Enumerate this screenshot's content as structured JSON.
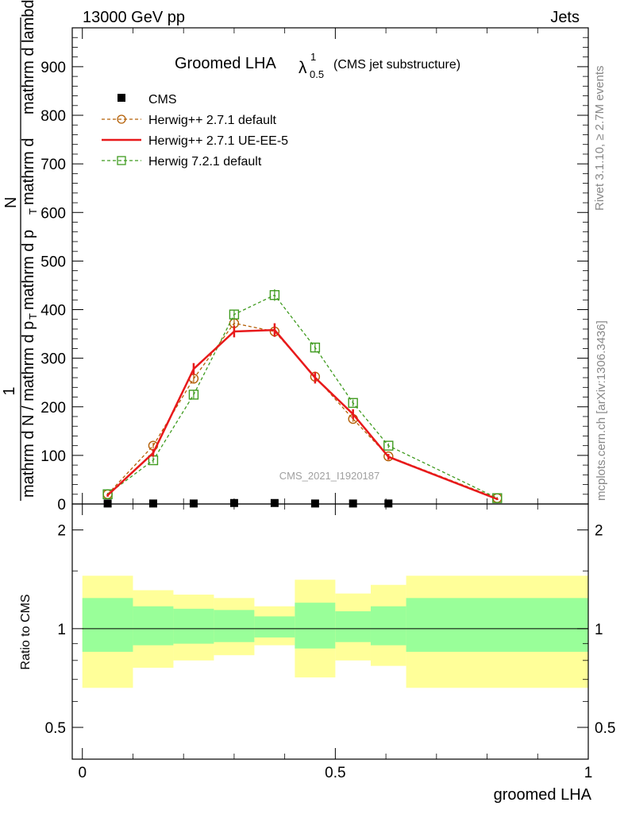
{
  "header": {
    "energy_label": "13000 GeV pp",
    "process_label": "Jets"
  },
  "side_labels": {
    "rivet": "Rivet 3.1.10, ≥ 2.7M events",
    "mcplots": "mcplots.cern.ch [arXiv:1306.3436]"
  },
  "watermark": "CMS_2021_I1920187",
  "main_title": {
    "text": "Groomed LHA",
    "lambda_symbol": "λ",
    "lambda_sup": "1",
    "lambda_sub": "0.5",
    "note": "(CMS jet substructure)"
  },
  "colors": {
    "cms": "#000000",
    "herwig_default": "#b45f06",
    "herwig_ueee5": "#e8191b",
    "herwig7": "#3f9b1f",
    "band_outer": "#ffff99",
    "band_inner": "#99ff99"
  },
  "chart_data": [
    {
      "type": "line",
      "ylabel_parts": [
        "1",
        "mathrm d N / mathrm d p",
        "T",
        "mathrm d p",
        "T",
        "mathrm d",
        "N",
        "mathrm d lambda"
      ],
      "ylim": [
        0,
        980
      ],
      "xlim": [
        -0.02,
        1.0
      ],
      "yticks": [
        0,
        100,
        200,
        300,
        400,
        500,
        600,
        700,
        800,
        900
      ],
      "legend_position": "top-left",
      "series": [
        {
          "name": "CMS",
          "marker": "filled-square",
          "x": [
            0.05,
            0.14,
            0.22,
            0.3,
            0.38,
            0.46,
            0.535,
            0.605
          ],
          "y": [
            1,
            1,
            1,
            2,
            2,
            1,
            1,
            1
          ]
        },
        {
          "name": "Herwig++ 2.7.1 default",
          "marker": "open-circle",
          "style": "dashed",
          "x": [
            0.05,
            0.14,
            0.22,
            0.3,
            0.38,
            0.46,
            0.535,
            0.605,
            0.82
          ],
          "y": [
            20,
            120,
            258,
            372,
            355,
            262,
            175,
            98,
            12
          ],
          "err": [
            3,
            6,
            8,
            9,
            9,
            8,
            6,
            4,
            2
          ]
        },
        {
          "name": "Herwig++ 2.7.1 UE-EE-5",
          "marker": "none",
          "style": "solid",
          "x": [
            0.05,
            0.14,
            0.22,
            0.3,
            0.38,
            0.46,
            0.535,
            0.605,
            0.82
          ],
          "y": [
            18,
            105,
            278,
            355,
            358,
            260,
            185,
            97,
            10
          ],
          "err": [
            3,
            8,
            12,
            12,
            14,
            12,
            10,
            6,
            2
          ]
        },
        {
          "name": "Herwig 7.2.1 default",
          "marker": "open-square",
          "style": "dashed",
          "x": [
            0.05,
            0.14,
            0.22,
            0.3,
            0.38,
            0.46,
            0.535,
            0.605,
            0.82
          ],
          "y": [
            20,
            90,
            225,
            390,
            430,
            322,
            208,
            120,
            12
          ],
          "err": [
            3,
            6,
            8,
            10,
            12,
            9,
            7,
            5,
            2
          ]
        }
      ]
    },
    {
      "type": "area",
      "ylabel": "Ratio to CMS",
      "xlabel": "groomed LHA",
      "yscale": "log",
      "ylim": [
        0.4,
        2.4
      ],
      "xlim": [
        -0.02,
        1.0
      ],
      "yticks": [
        0.5,
        1,
        2
      ],
      "xticks": [
        0,
        0.5,
        1
      ],
      "reference_line": 1,
      "bins": [
        {
          "x_lo": 0.0,
          "x_hi": 0.1,
          "outer_lo": 0.66,
          "outer_hi": 1.45,
          "inner_lo": 0.85,
          "inner_hi": 1.24
        },
        {
          "x_lo": 0.1,
          "x_hi": 0.18,
          "outer_lo": 0.76,
          "outer_hi": 1.31,
          "inner_lo": 0.89,
          "inner_hi": 1.17
        },
        {
          "x_lo": 0.18,
          "x_hi": 0.26,
          "outer_lo": 0.8,
          "outer_hi": 1.27,
          "inner_lo": 0.9,
          "inner_hi": 1.15
        },
        {
          "x_lo": 0.26,
          "x_hi": 0.34,
          "outer_lo": 0.83,
          "outer_hi": 1.24,
          "inner_lo": 0.91,
          "inner_hi": 1.14
        },
        {
          "x_lo": 0.34,
          "x_hi": 0.42,
          "outer_lo": 0.89,
          "outer_hi": 1.17,
          "inner_lo": 0.94,
          "inner_hi": 1.09
        },
        {
          "x_lo": 0.42,
          "x_hi": 0.5,
          "outer_lo": 0.71,
          "outer_hi": 1.41,
          "inner_lo": 0.87,
          "inner_hi": 1.2
        },
        {
          "x_lo": 0.5,
          "x_hi": 0.57,
          "outer_lo": 0.8,
          "outer_hi": 1.28,
          "inner_lo": 0.91,
          "inner_hi": 1.13
        },
        {
          "x_lo": 0.57,
          "x_hi": 0.64,
          "outer_lo": 0.77,
          "outer_hi": 1.36,
          "inner_lo": 0.89,
          "inner_hi": 1.17
        },
        {
          "x_lo": 0.64,
          "x_hi": 1.0,
          "outer_lo": 0.66,
          "outer_hi": 1.45,
          "inner_lo": 0.85,
          "inner_hi": 1.24
        }
      ]
    }
  ]
}
